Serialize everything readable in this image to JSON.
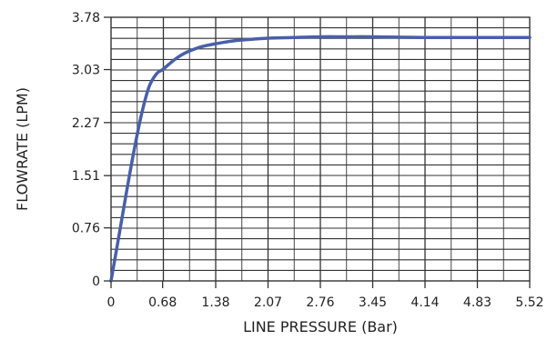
{
  "chart_data": {
    "type": "line",
    "title": "",
    "xlabel": "LINE PRESSURE (Bar)",
    "ylabel": "FLOWRATE (LPM)",
    "x_ticks": [
      0,
      0.68,
      1.38,
      2.07,
      2.76,
      3.45,
      4.14,
      4.83,
      5.52
    ],
    "x_tick_labels": [
      "0",
      "0.68",
      "1.38",
      "2.07",
      "2.76",
      "3.45",
      "4.14",
      "4.83",
      "5.52"
    ],
    "y_ticks": [
      0,
      0.76,
      1.51,
      2.27,
      3.03,
      3.78
    ],
    "y_tick_labels": [
      "0",
      "0.76",
      "1.51",
      "2.27",
      "3.03",
      "3.78"
    ],
    "xlim": [
      0,
      5.52
    ],
    "ylim": [
      0,
      3.78
    ],
    "grid": true,
    "colors": {
      "line": "#4a5fa8",
      "grid": "#333333",
      "frame": "#333333",
      "background": "#ffffff"
    },
    "series": [
      {
        "x": [
          0,
          0.1,
          0.2,
          0.3,
          0.4,
          0.5,
          0.6,
          0.68,
          0.8,
          0.9,
          1.0,
          1.2,
          1.38,
          1.6,
          1.8,
          2.07,
          2.4,
          2.76,
          3.1,
          3.45,
          4.14,
          4.83,
          5.52
        ],
        "y": [
          0,
          0.62,
          1.25,
          1.85,
          2.38,
          2.78,
          2.97,
          3.03,
          3.14,
          3.22,
          3.28,
          3.36,
          3.4,
          3.44,
          3.46,
          3.48,
          3.49,
          3.5,
          3.5,
          3.5,
          3.49,
          3.49,
          3.49
        ]
      }
    ]
  }
}
